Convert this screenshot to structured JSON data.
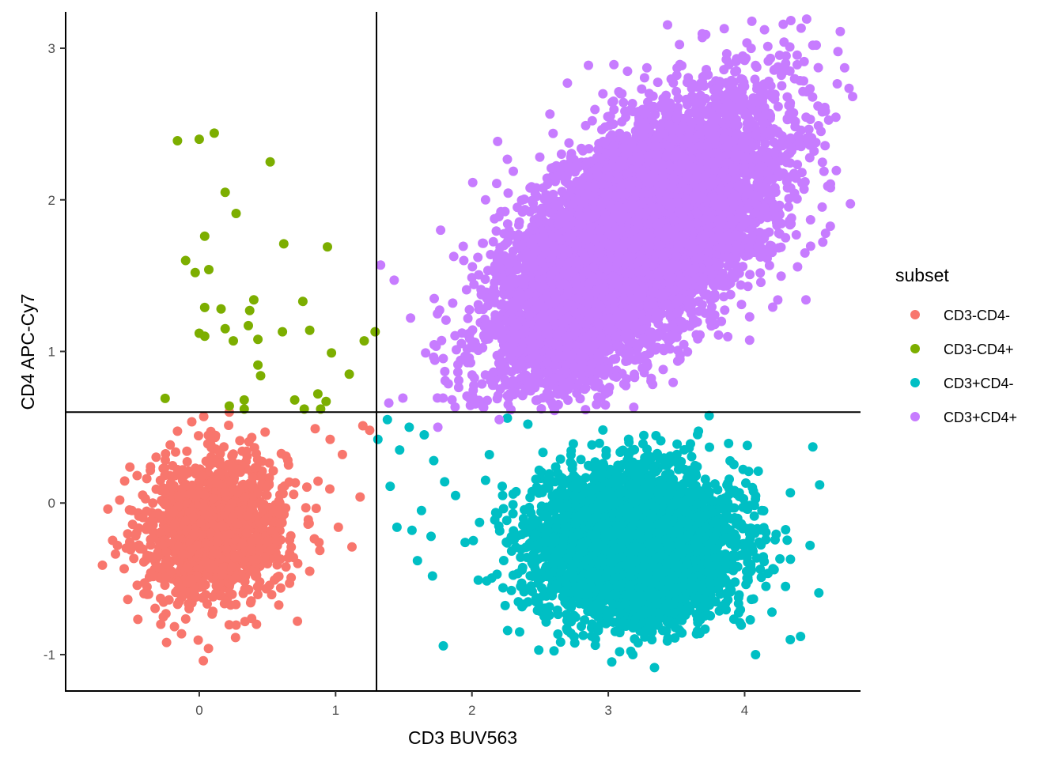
{
  "chart_data": {
    "type": "scatter",
    "xlabel": "CD3 BUV563",
    "ylabel": "CD4 APC-Cy7",
    "xlim": [
      -0.98,
      4.85
    ],
    "ylim": [
      -1.24,
      3.24
    ],
    "x_ticks": [
      0,
      1,
      2,
      3,
      4
    ],
    "y_ticks": [
      -1,
      0,
      1,
      2,
      3
    ],
    "x_tick_labels": [
      "0",
      "1",
      "2",
      "3",
      "4"
    ],
    "y_tick_labels": [
      "-1",
      "0",
      "1",
      "2",
      "3"
    ],
    "grid": false,
    "gates": {
      "vertical_x": 1.3,
      "horizontal_y": 0.6
    },
    "legend": {
      "title": "subset",
      "placement": "right",
      "entries": [
        "CD3-CD4-",
        "CD3-CD4+",
        "CD3+CD4-",
        "CD3+CD4+"
      ]
    },
    "series": [
      {
        "name": "CD3-CD4-",
        "color": "#F8766D",
        "cluster": {
          "n": 1400,
          "center": [
            0.12,
            -0.17
          ],
          "sd": [
            0.26,
            0.24
          ],
          "corr": 0.1,
          "xrange": [
            -0.9,
            1.29
          ],
          "yrange": [
            -1.2,
            0.59
          ]
        },
        "points": [
          [
            -0.71,
            -0.41
          ],
          [
            -0.67,
            -0.04
          ],
          [
            -0.6,
            -0.28
          ],
          [
            -0.24,
            -0.92
          ],
          [
            0.03,
            -1.04
          ],
          [
            0.22,
            0.6
          ],
          [
            0.85,
            0.49
          ],
          [
            0.96,
            0.42
          ],
          [
            1.05,
            0.32
          ],
          [
            1.2,
            0.51
          ],
          [
            1.25,
            0.48
          ],
          [
            1.12,
            -0.29
          ],
          [
            1.18,
            0.04
          ],
          [
            1.02,
            -0.16
          ],
          [
            0.81,
            -0.45
          ],
          [
            0.72,
            -0.78
          ],
          [
            0.42,
            -0.8
          ]
        ]
      },
      {
        "name": "CD3-CD4+",
        "color": "#7CAE00",
        "points": [
          [
            -0.16,
            2.39
          ],
          [
            0.0,
            2.4
          ],
          [
            0.11,
            2.44
          ],
          [
            0.52,
            2.25
          ],
          [
            0.19,
            2.05
          ],
          [
            0.27,
            1.91
          ],
          [
            0.04,
            1.76
          ],
          [
            0.62,
            1.71
          ],
          [
            0.94,
            1.69
          ],
          [
            -0.1,
            1.6
          ],
          [
            -0.03,
            1.52
          ],
          [
            0.07,
            1.54
          ],
          [
            0.04,
            1.29
          ],
          [
            0.16,
            1.28
          ],
          [
            0.4,
            1.34
          ],
          [
            0.37,
            1.27
          ],
          [
            0.76,
            1.33
          ],
          [
            0.0,
            1.12
          ],
          [
            0.04,
            1.1
          ],
          [
            0.19,
            1.15
          ],
          [
            0.25,
            1.07
          ],
          [
            0.36,
            1.17
          ],
          [
            0.43,
            1.08
          ],
          [
            0.61,
            1.13
          ],
          [
            0.81,
            1.14
          ],
          [
            0.43,
            0.91
          ],
          [
            0.45,
            0.84
          ],
          [
            0.97,
            0.99
          ],
          [
            1.1,
            0.85
          ],
          [
            1.21,
            1.07
          ],
          [
            1.29,
            1.13
          ],
          [
            -0.25,
            0.69
          ],
          [
            0.33,
            0.68
          ],
          [
            0.7,
            0.68
          ],
          [
            0.87,
            0.72
          ],
          [
            0.93,
            0.67
          ],
          [
            0.22,
            0.64
          ],
          [
            0.33,
            0.62
          ],
          [
            0.77,
            0.62
          ],
          [
            0.89,
            0.62
          ]
        ]
      },
      {
        "name": "CD3+CD4-",
        "color": "#00BFC4",
        "cluster": {
          "n": 4300,
          "center": [
            3.2,
            -0.27
          ],
          "sd": [
            0.36,
            0.24
          ],
          "corr": 0.0,
          "xrange": [
            1.31,
            4.8
          ],
          "yrange": [
            -1.2,
            0.59
          ]
        },
        "points": [
          [
            1.31,
            0.42
          ],
          [
            1.38,
            0.55
          ],
          [
            1.4,
            0.11
          ],
          [
            1.47,
            0.35
          ],
          [
            1.54,
            0.5
          ],
          [
            1.65,
            0.45
          ],
          [
            1.72,
            0.28
          ],
          [
            1.8,
            0.14
          ],
          [
            1.88,
            0.05
          ],
          [
            1.63,
            -0.05
          ],
          [
            1.45,
            -0.16
          ],
          [
            1.56,
            -0.18
          ],
          [
            1.6,
            -0.38
          ],
          [
            1.7,
            -0.22
          ],
          [
            1.95,
            -0.26
          ],
          [
            2.1,
            0.15
          ],
          [
            2.26,
            0.56
          ],
          [
            2.41,
            0.52
          ],
          [
            2.49,
            -0.97
          ],
          [
            2.35,
            -0.85
          ],
          [
            4.02,
            0.38
          ],
          [
            4.1,
            0.21
          ],
          [
            4.5,
            0.37
          ],
          [
            4.55,
            0.12
          ],
          [
            4.48,
            -0.28
          ],
          [
            4.41,
            -0.88
          ],
          [
            4.08,
            -1.0
          ],
          [
            3.18,
            -1.0
          ],
          [
            4.3,
            -0.55
          ],
          [
            4.2,
            -0.72
          ]
        ]
      },
      {
        "name": "CD3+CD4+",
        "color": "#C77CFF",
        "cluster": {
          "n": 9000,
          "center": [
            3.18,
            1.72
          ],
          "sd": [
            0.48,
            0.43
          ],
          "corr": 0.6,
          "xrange": [
            1.31,
            4.8
          ],
          "yrange": [
            0.61,
            3.2
          ]
        },
        "points": [
          [
            1.33,
            1.57
          ],
          [
            1.43,
            1.47
          ],
          [
            1.39,
            0.66
          ],
          [
            1.66,
            0.99
          ],
          [
            1.55,
            1.22
          ],
          [
            1.77,
            1.8
          ],
          [
            1.94,
            1.6
          ],
          [
            2.33,
            1.71
          ],
          [
            2.37,
            1.92
          ],
          [
            2.1,
            2.0
          ],
          [
            2.7,
            2.77
          ],
          [
            3.68,
            2.77
          ],
          [
            3.1,
            2.7
          ],
          [
            4.0,
            2.92
          ],
          [
            4.5,
            3.02
          ],
          [
            4.57,
            2.58
          ],
          [
            4.61,
            2.09
          ],
          [
            4.45,
            1.34
          ],
          [
            4.3,
            1.75
          ],
          [
            4.42,
            2.18
          ],
          [
            1.75,
            0.5
          ],
          [
            2.2,
            0.55
          ]
        ]
      }
    ]
  }
}
